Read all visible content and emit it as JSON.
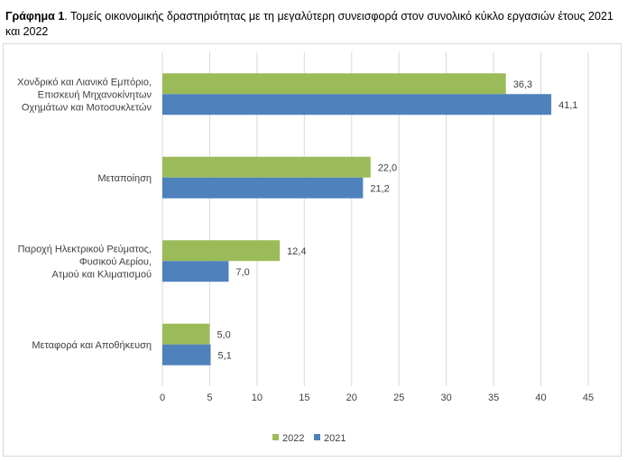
{
  "caption": {
    "bold": "Γράφημα 1",
    "text": ". Τομείς οικονομικής δραστηριότητας με τη μεγαλύτερη συνεισφορά στον συνολικό κύκλο εργασιών έτους 2021 και 2022"
  },
  "chart_data": {
    "type": "bar",
    "orientation": "horizontal",
    "categories": [
      [
        "Χονδρικό και Λιανικό Εμπόριο,",
        "Επισκευή Μηχανοκίνητων",
        "Οχημάτων και Μοτοσυκλετών"
      ],
      [
        "Μεταποίηση"
      ],
      [
        "Παροχή Ηλεκτρικού Ρεύματος,",
        "Φυσικού Αερίου,",
        "Ατμού και Κλιματισμού"
      ],
      [
        "Μεταφορά και Αποθήκευση"
      ]
    ],
    "series": [
      {
        "name": "2022",
        "color": "#9bbb59",
        "values": [
          36.3,
          22.0,
          12.4,
          5.0
        ],
        "labels": [
          "36,3",
          "22,0",
          "12,4",
          "5,0"
        ]
      },
      {
        "name": "2021",
        "color": "#4f81bd",
        "values": [
          41.1,
          21.2,
          7.0,
          5.1
        ],
        "labels": [
          "41,1",
          "21,2",
          "7,0",
          "5,1"
        ]
      }
    ],
    "xlim": [
      0,
      45
    ],
    "xticks": [
      "0",
      "5",
      "10",
      "15",
      "20",
      "25",
      "30",
      "35",
      "40",
      "45"
    ],
    "grid": true,
    "legend_position": "bottom",
    "gridline_color": "#d9d9d9"
  }
}
